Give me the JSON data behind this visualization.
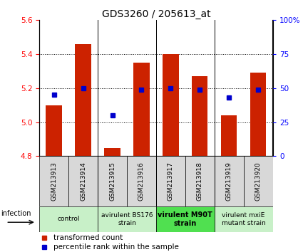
{
  "title": "GDS3260 / 205613_at",
  "samples": [
    "GSM213913",
    "GSM213914",
    "GSM213915",
    "GSM213916",
    "GSM213917",
    "GSM213918",
    "GSM213919",
    "GSM213920"
  ],
  "bar_values": [
    5.1,
    5.46,
    4.85,
    5.35,
    5.4,
    5.27,
    5.04,
    5.29
  ],
  "percentile_values": [
    45,
    50,
    30,
    49,
    50,
    49,
    43,
    49
  ],
  "bar_color": "#cc2200",
  "percentile_color": "#0000cc",
  "ylim": [
    4.8,
    5.6
  ],
  "yticks_left": [
    4.8,
    5.0,
    5.2,
    5.4,
    5.6
  ],
  "yticks_right": [
    0,
    25,
    50,
    75,
    100
  ],
  "ytick_labels_right": [
    "0",
    "25",
    "50",
    "75",
    "100%"
  ],
  "groups": [
    {
      "label": "control",
      "start": 0,
      "end": 2,
      "color": "#c8f0c8"
    },
    {
      "label": "avirulent BS176\nstrain",
      "start": 2,
      "end": 4,
      "color": "#c8f0c8"
    },
    {
      "label": "virulent M90T\nstrain",
      "start": 4,
      "end": 6,
      "color": "#50e050"
    },
    {
      "label": "virulent mxiE\nmutant strain",
      "start": 6,
      "end": 8,
      "color": "#c8f0c8"
    }
  ],
  "sample_box_color": "#d8d8d8",
  "infection_label": "infection",
  "legend_bar_label": "transformed count",
  "legend_pct_label": "percentile rank within the sample",
  "title_fontsize": 10,
  "tick_fontsize": 7.5,
  "sample_fontsize": 6.5,
  "group_fontsize": 7.0,
  "legend_fontsize": 7.5
}
